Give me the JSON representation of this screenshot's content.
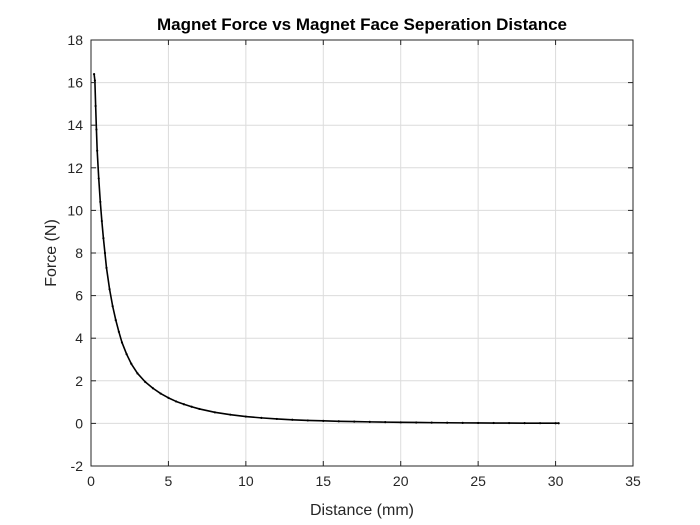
{
  "chart_data": {
    "type": "scatter",
    "title": "Magnet Force vs Magnet Face Seperation Distance",
    "xlabel": "Distance (mm)",
    "ylabel": "Force (N)",
    "xlim": [
      0,
      35
    ],
    "ylim": [
      -2,
      18
    ],
    "xticks": [
      0,
      5,
      10,
      15,
      20,
      25,
      30,
      35
    ],
    "yticks": [
      -2,
      0,
      2,
      4,
      6,
      8,
      10,
      12,
      14,
      16,
      18
    ],
    "grid": true,
    "marker_color": "#000000",
    "series": [
      {
        "x": [
          0.2,
          0.25,
          0.3,
          0.35,
          0.4,
          0.5,
          0.6,
          0.7,
          0.8,
          0.9,
          1.0,
          1.2,
          1.4,
          1.6,
          1.8,
          2.0,
          2.3,
          2.6,
          3.0,
          3.5,
          4.0,
          4.5,
          5.0,
          5.5,
          6.0,
          6.5,
          7.0,
          8.0,
          9.0,
          10.0,
          11.0,
          12.0,
          13.0,
          14.0,
          15.0,
          16.0,
          17.0,
          18.0,
          19.0,
          20.0,
          21.0,
          22.0,
          23.0,
          24.0,
          25.0,
          26.0,
          27.0,
          28.0,
          29.0,
          30.0,
          30.2
        ],
        "y": [
          16.4,
          16.1,
          14.9,
          13.8,
          12.8,
          11.5,
          10.4,
          9.5,
          8.7,
          8.0,
          7.3,
          6.3,
          5.5,
          4.85,
          4.3,
          3.8,
          3.25,
          2.8,
          2.35,
          1.95,
          1.65,
          1.4,
          1.2,
          1.03,
          0.9,
          0.78,
          0.68,
          0.52,
          0.41,
          0.32,
          0.26,
          0.21,
          0.17,
          0.14,
          0.12,
          0.1,
          0.085,
          0.072,
          0.06,
          0.05,
          0.043,
          0.036,
          0.03,
          0.025,
          0.021,
          0.018,
          0.015,
          0.012,
          0.01,
          0.008,
          0.008
        ]
      }
    ]
  }
}
